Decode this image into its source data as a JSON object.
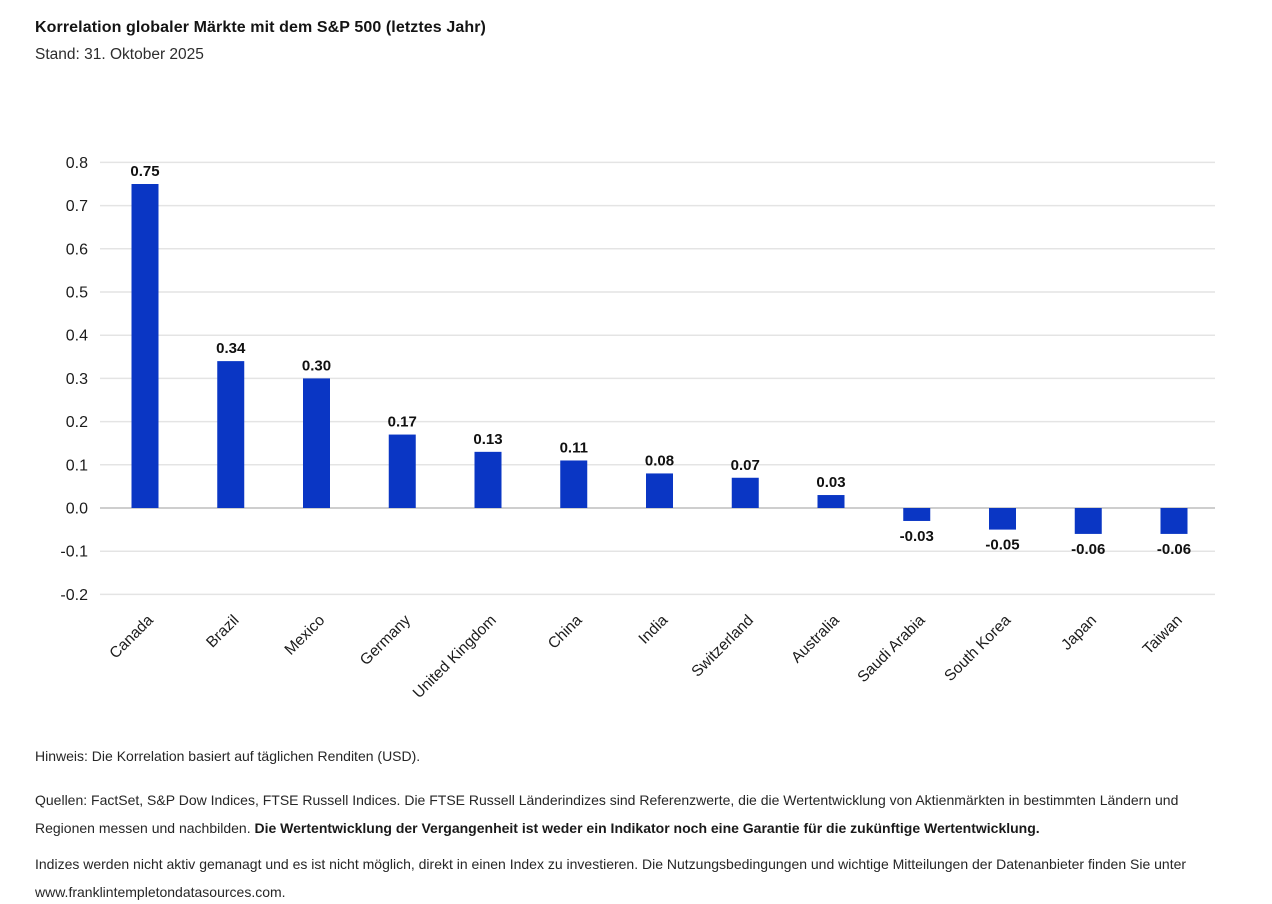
{
  "header": {
    "title": "Korrelation globaler Märkte mit dem S&P 500 (letztes Jahr)",
    "subtitle": "Stand: 31. Oktober 2025"
  },
  "chart_data": {
    "type": "bar",
    "title": "Korrelation globaler Märkte mit dem S&P 500 (letztes Jahr)",
    "subtitle": "Stand: 31. Oktober 2025",
    "categories": [
      "Canada",
      "Brazil",
      "Mexico",
      "Germany",
      "United Kingdom",
      "China",
      "India",
      "Switzerland",
      "Australia",
      "Saudi Arabia",
      "South Korea",
      "Japan",
      "Taiwan"
    ],
    "values": [
      0.75,
      0.34,
      0.3,
      0.17,
      0.13,
      0.11,
      0.08,
      0.07,
      0.03,
      -0.03,
      -0.05,
      -0.06,
      -0.06
    ],
    "value_labels": [
      "0.75",
      "0.34",
      "0.30",
      "0.17",
      "0.13",
      "0.11",
      "0.08",
      "0.07",
      "0.03",
      "-0.03",
      "-0.05",
      "-0.06",
      "-0.06"
    ],
    "xlabel": "",
    "ylabel": "",
    "ylim": [
      -0.2,
      0.8
    ],
    "ytick_step": 0.1,
    "ytick_labels": [
      "0.8",
      "0.7",
      "0.6",
      "0.5",
      "0.4",
      "0.3",
      "0.2",
      "0.1",
      "0.0",
      "-0.1",
      "-0.2"
    ],
    "grid": true,
    "legend_position": "none",
    "bar_color": "#0a36c4",
    "gridline_color": "#e4e4e4",
    "zero_line_color": "#bdbdbd"
  },
  "footnotes": {
    "note": "Hinweis: Die Korrelation basiert auf täglichen Renditen (USD).",
    "sources_text": "Quellen: FactSet, S&P Dow Indices, FTSE Russell Indices. Die FTSE Russell Länderindizes sind Referenzwerte, die die Wertentwicklung von Aktienmärkten in bestimmten Ländern und Regionen messen und nachbilden. ",
    "sources_bold": "Die Wertentwicklung der Vergangenheit ist weder ein Indikator noch eine Garantie für die zukünftige Wertentwicklung.",
    "disclaimer": "Indizes werden nicht aktiv gemanagt und es ist nicht möglich, direkt in einen Index zu investieren. Die Nutzungsbedingungen und wichtige Mitteilungen der Datenanbieter finden Sie unter www.franklintempletondatasources.com."
  }
}
